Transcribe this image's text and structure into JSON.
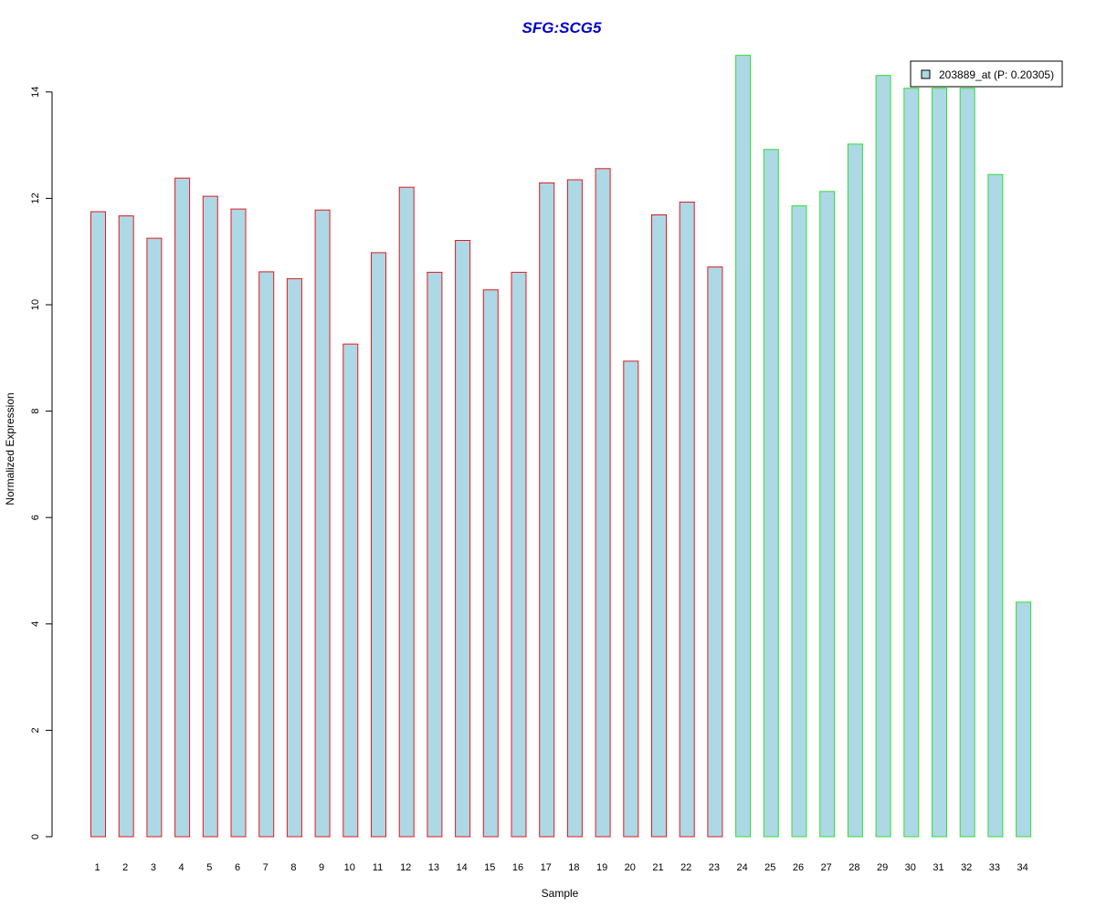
{
  "chart_data": {
    "type": "bar",
    "title": "SFG:SCG5",
    "title_color": "#0000cc",
    "xlabel": "Sample",
    "ylabel": "Normalized Expression",
    "ylim": [
      0,
      14.8
    ],
    "yticks": [
      0,
      2,
      4,
      6,
      8,
      10,
      12,
      14
    ],
    "categories": [
      "1",
      "2",
      "3",
      "4",
      "5",
      "6",
      "7",
      "8",
      "9",
      "10",
      "11",
      "12",
      "13",
      "14",
      "15",
      "16",
      "17",
      "18",
      "19",
      "20",
      "21",
      "22",
      "23",
      "24",
      "25",
      "26",
      "27",
      "28",
      "29",
      "30",
      "31",
      "32",
      "33",
      "34"
    ],
    "series": [
      {
        "name": "203889_at (P: 0.20305)",
        "fill": "#add8e6",
        "values": [
          11.75,
          11.67,
          11.25,
          12.38,
          12.04,
          11.8,
          10.62,
          10.49,
          11.78,
          9.26,
          10.98,
          12.21,
          10.61,
          11.21,
          10.28,
          10.61,
          12.29,
          12.35,
          12.56,
          8.94,
          11.69,
          11.93,
          10.71,
          14.69,
          12.92,
          11.86,
          12.13,
          13.02,
          14.31,
          14.07,
          14.07,
          14.07,
          12.45,
          4.41
        ],
        "groups": [
          "red",
          "red",
          "red",
          "red",
          "red",
          "red",
          "red",
          "red",
          "red",
          "red",
          "red",
          "red",
          "red",
          "red",
          "red",
          "red",
          "red",
          "red",
          "red",
          "red",
          "red",
          "red",
          "red",
          "green",
          "green",
          "green",
          "green",
          "green",
          "green",
          "green",
          "green",
          "green",
          "green",
          "green"
        ]
      }
    ],
    "group_colors": {
      "red": "#e31a1c",
      "green": "#33dd33"
    },
    "legend": {
      "placement": "top-right",
      "label": "203889_at (P: 0.20305)"
    }
  }
}
